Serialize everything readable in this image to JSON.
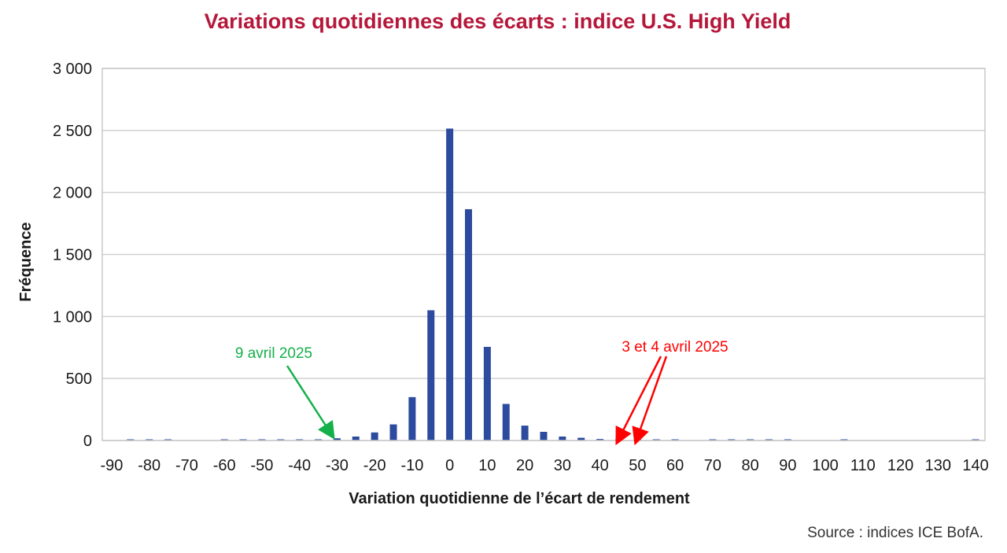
{
  "chart_data": {
    "type": "bar",
    "title": "Variations quotidiennes des écarts : indice U.S. High Yield",
    "xlabel": "Variation quotidienne de l’écart de rendement",
    "ylabel": "Fréquence",
    "x": [
      -90,
      -85,
      -80,
      -75,
      -70,
      -65,
      -60,
      -55,
      -50,
      -45,
      -40,
      -35,
      -30,
      -25,
      -20,
      -15,
      -10,
      -5,
      0,
      5,
      10,
      15,
      20,
      25,
      30,
      35,
      40,
      45,
      50,
      55,
      60,
      65,
      70,
      75,
      80,
      85,
      90,
      95,
      100,
      105,
      110,
      115,
      120,
      125,
      130,
      135,
      140
    ],
    "values": [
      0,
      1,
      1,
      1,
      0,
      0,
      1,
      1,
      1,
      2,
      4,
      8,
      18,
      32,
      65,
      130,
      350,
      1050,
      2515,
      1865,
      755,
      295,
      120,
      70,
      32,
      22,
      12,
      2,
      2,
      2,
      2,
      0,
      1,
      1,
      2,
      1,
      1,
      0,
      0,
      2,
      0,
      0,
      0,
      0,
      0,
      0,
      1
    ],
    "xticks": [
      "-90",
      "-80",
      "-70",
      "-60",
      "-50",
      "-40",
      "-30",
      "-20",
      "-10",
      "0",
      "10",
      "20",
      "30",
      "40",
      "50",
      "60",
      "70",
      "80",
      "90",
      "100",
      "110",
      "120",
      "130",
      "140"
    ],
    "yticks": [
      "0",
      "500",
      "1 000",
      "1 500",
      "2 000",
      "2 500",
      "3 000"
    ],
    "ylim": [
      0,
      3000
    ],
    "xlim": [
      -92.5,
      142.5
    ],
    "grid": true,
    "legend": "none",
    "annotations": [
      {
        "text": "9 avril 2025",
        "color": "#14b04a",
        "target_x": [
          -30
        ]
      },
      {
        "text": "3 et 4 avril 2025",
        "color": "#ff0000",
        "target_x": [
          45,
          50
        ]
      }
    ],
    "colors": {
      "bar": "#2c4a9e",
      "title": "#b5173a",
      "grid": "#d0d0d0"
    }
  },
  "source": "Source : indices ICE BofA."
}
